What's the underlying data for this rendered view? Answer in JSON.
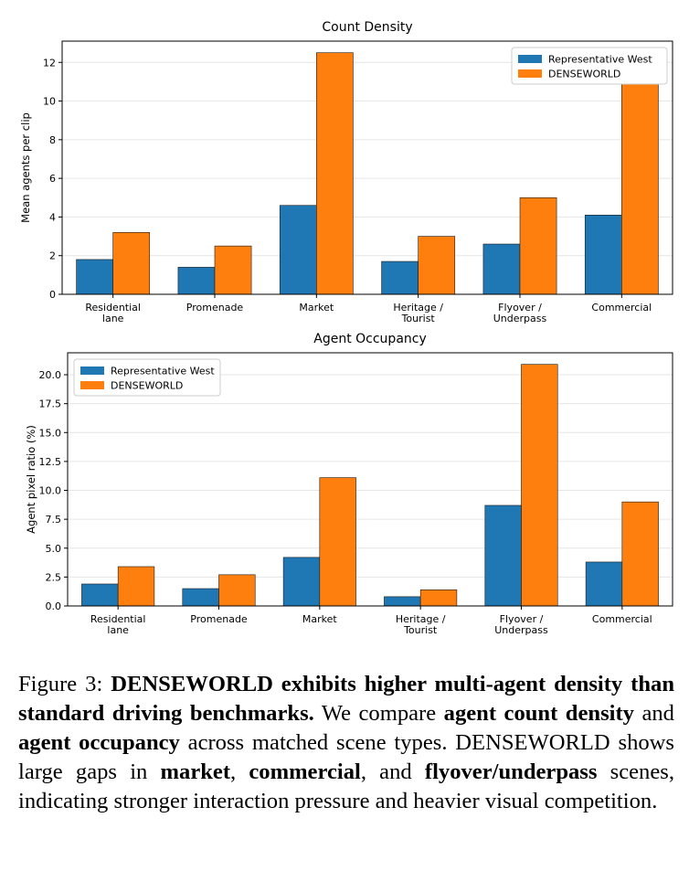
{
  "colors": {
    "west": "#1f77b4",
    "denseworld": "#ff7f0e"
  },
  "chart_data": [
    {
      "type": "bar",
      "title": "Count Density",
      "xlabel": "",
      "ylabel": "Mean agents per clip",
      "categories": [
        [
          "Residential",
          "lane"
        ],
        [
          "Promenade"
        ],
        [
          "Market"
        ],
        [
          "Heritage /",
          "Tourist"
        ],
        [
          "Flyover /",
          "Underpass"
        ],
        [
          "Commercial"
        ]
      ],
      "series": [
        {
          "name": "Representative West",
          "values": [
            1.8,
            1.4,
            4.6,
            1.7,
            2.6,
            4.1
          ]
        },
        {
          "name": "DENSEWORLD",
          "values": [
            3.2,
            2.5,
            12.5,
            3.0,
            5.0,
            11.0
          ]
        }
      ],
      "ylim": [
        0,
        13.1
      ],
      "yticks": [
        "0",
        "2",
        "4",
        "6",
        "8",
        "10",
        "12"
      ],
      "ytick_values": [
        0,
        2,
        4,
        6,
        8,
        10,
        12
      ],
      "grid": true,
      "legend": "top-right"
    },
    {
      "type": "bar",
      "title": "Agent Occupancy",
      "xlabel": "",
      "ylabel": "Agent pixel ratio (%)",
      "categories": [
        [
          "Residential",
          "lane"
        ],
        [
          "Promenade"
        ],
        [
          "Market"
        ],
        [
          "Heritage /",
          "Tourist"
        ],
        [
          "Flyover /",
          "Underpass"
        ],
        [
          "Commercial"
        ]
      ],
      "series": [
        {
          "name": "Representative West",
          "values": [
            1.9,
            1.5,
            4.2,
            0.8,
            8.7,
            3.8
          ]
        },
        {
          "name": "DENSEWORLD",
          "values": [
            3.4,
            2.7,
            11.1,
            1.4,
            20.9,
            9.0
          ]
        }
      ],
      "ylim": [
        0,
        21.9
      ],
      "yticks": [
        "0.0",
        "2.5",
        "5.0",
        "7.5",
        "10.0",
        "12.5",
        "15.0",
        "17.5",
        "20.0"
      ],
      "ytick_values": [
        0,
        2.5,
        5,
        7.5,
        10,
        12.5,
        15,
        17.5,
        20
      ],
      "grid": true,
      "legend": "top-left"
    }
  ],
  "caption": {
    "label": "Figure 3: ",
    "bold_lead": "DENSEWORLD exhibits higher multi-agent density than standard driving benchmarks.",
    "t1": " We compare ",
    "b1": "agent count density",
    "t2": " and ",
    "b2": "agent occupancy",
    "t3": " across matched scene types. DENSEWORLD shows large gaps in ",
    "b3": "market",
    "t4": ", ",
    "b4": "commercial",
    "t5": ", and ",
    "b5": "flyover/underpass",
    "t6": " scenes, indicating stronger interaction pressure and heavier visual competition."
  }
}
